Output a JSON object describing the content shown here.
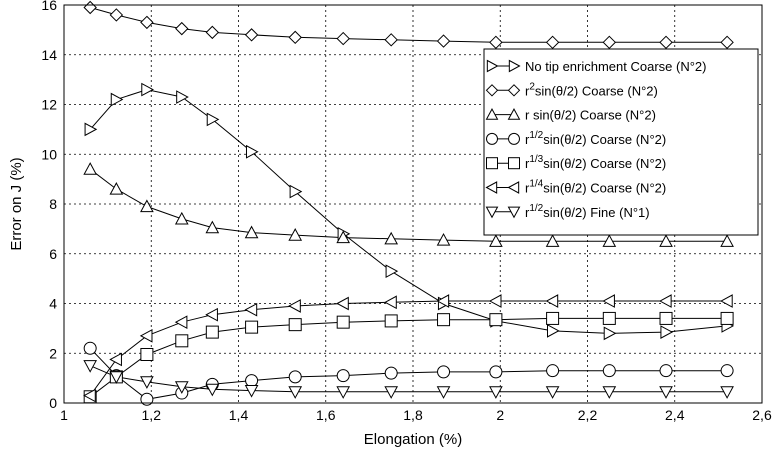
{
  "chart_data": {
    "type": "line",
    "xlabel": "Elongation (%)",
    "ylabel": "Error on J (%)",
    "xlim": [
      1,
      2.6
    ],
    "ylim": [
      0,
      16
    ],
    "x_ticks": [
      "1",
      "1,2",
      "1,4",
      "1,6",
      "1,8",
      "2",
      "2,2",
      "2,4",
      "2,6"
    ],
    "y_ticks": [
      "0",
      "2",
      "4",
      "6",
      "8",
      "10",
      "12",
      "14",
      "16"
    ],
    "grid": "dashed",
    "legend_position": "top-right",
    "series": [
      {
        "marker": "triangle-right",
        "legend": {
          "base": "No tip enrichment Coarse (N°2)"
        },
        "x": [
          1.06,
          1.12,
          1.19,
          1.27,
          1.34,
          1.43,
          1.53,
          1.64,
          1.75,
          1.87,
          1.99,
          2.12,
          2.25,
          2.38,
          2.52
        ],
        "y": [
          11.0,
          12.2,
          12.6,
          12.3,
          11.4,
          10.1,
          8.5,
          6.8,
          5.3,
          4.0,
          3.3,
          2.9,
          2.8,
          2.85,
          3.1
        ]
      },
      {
        "marker": "diamond",
        "legend": {
          "base": "r",
          "sup": "2",
          "rest": "sin(θ/2) Coarse (N°2)"
        },
        "x": [
          1.06,
          1.12,
          1.19,
          1.27,
          1.34,
          1.43,
          1.53,
          1.64,
          1.75,
          1.87,
          1.99,
          2.12,
          2.25,
          2.38,
          2.52
        ],
        "y": [
          15.9,
          15.6,
          15.3,
          15.05,
          14.9,
          14.8,
          14.7,
          14.65,
          14.6,
          14.55,
          14.5,
          14.5,
          14.5,
          14.5,
          14.5
        ]
      },
      {
        "marker": "triangle-up",
        "legend": {
          "base": "r sin(θ/2) Coarse (N°2)"
        },
        "x": [
          1.06,
          1.12,
          1.19,
          1.27,
          1.34,
          1.43,
          1.53,
          1.64,
          1.75,
          1.87,
          1.99,
          2.12,
          2.25,
          2.38,
          2.52
        ],
        "y": [
          9.4,
          8.6,
          7.9,
          7.4,
          7.05,
          6.85,
          6.75,
          6.65,
          6.6,
          6.55,
          6.5,
          6.5,
          6.5,
          6.5,
          6.5
        ]
      },
      {
        "marker": "circle",
        "legend": {
          "base": "r",
          "sup": "1/2",
          "rest": "sin(θ/2) Coarse (N°2)"
        },
        "x": [
          1.06,
          1.12,
          1.19,
          1.27,
          1.34,
          1.43,
          1.53,
          1.64,
          1.75,
          1.87,
          1.99,
          2.12,
          2.25,
          2.38,
          2.52
        ],
        "y": [
          2.2,
          1.1,
          0.15,
          0.4,
          0.75,
          0.9,
          1.05,
          1.1,
          1.2,
          1.25,
          1.25,
          1.3,
          1.3,
          1.3,
          1.3
        ]
      },
      {
        "marker": "square",
        "legend": {
          "base": "r",
          "sup": "1/3",
          "rest": "sin(θ/2) Coarse (N°2)"
        },
        "x": [
          1.06,
          1.12,
          1.19,
          1.27,
          1.34,
          1.43,
          1.53,
          1.64,
          1.75,
          1.87,
          1.99,
          2.12,
          2.25,
          2.38,
          2.52
        ],
        "y": [
          0.25,
          1.05,
          1.95,
          2.5,
          2.85,
          3.05,
          3.15,
          3.25,
          3.3,
          3.35,
          3.35,
          3.4,
          3.4,
          3.4,
          3.4
        ]
      },
      {
        "marker": "triangle-left",
        "legend": {
          "base": "r",
          "sup": "1/4",
          "rest": "sin(θ/2) Coarse (N°2)"
        },
        "x": [
          1.06,
          1.12,
          1.19,
          1.27,
          1.34,
          1.43,
          1.53,
          1.64,
          1.75,
          1.87,
          1.99,
          2.12,
          2.25,
          2.38,
          2.52
        ],
        "y": [
          0.3,
          1.75,
          2.7,
          3.25,
          3.55,
          3.75,
          3.9,
          4.0,
          4.05,
          4.1,
          4.1,
          4.1,
          4.1,
          4.1,
          4.1
        ]
      },
      {
        "marker": "triangle-down",
        "legend": {
          "base": "r",
          "sup": "1/2",
          "rest": "sin(θ/2) Fine (N°1)"
        },
        "x": [
          1.06,
          1.12,
          1.19,
          1.27,
          1.34,
          1.43,
          1.53,
          1.64,
          1.75,
          1.87,
          1.99,
          2.12,
          2.25,
          2.38,
          2.52
        ],
        "y": [
          1.5,
          1.05,
          0.85,
          0.65,
          0.55,
          0.5,
          0.45,
          0.45,
          0.45,
          0.45,
          0.45,
          0.45,
          0.45,
          0.45,
          0.45
        ]
      }
    ]
  }
}
